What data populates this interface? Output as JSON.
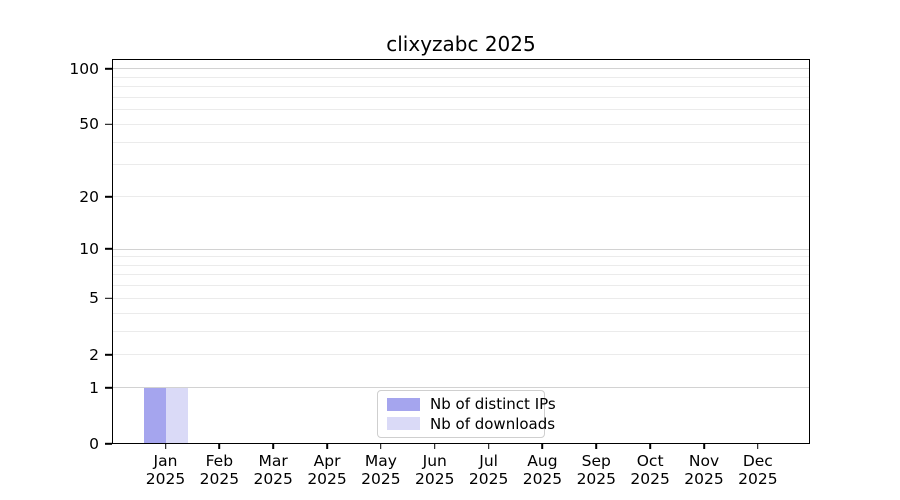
{
  "chart_data": {
    "type": "bar",
    "title": "clixyzabc 2025",
    "categories": [
      "Jan 2025",
      "Feb 2025",
      "Mar 2025",
      "Apr 2025",
      "May 2025",
      "Jun 2025",
      "Jul 2025",
      "Aug 2025",
      "Sep 2025",
      "Oct 2025",
      "Nov 2025",
      "Dec 2025"
    ],
    "series": [
      {
        "name": "Nb of distinct IPs",
        "color": "#a5a5ee",
        "values": [
          1,
          0,
          0,
          0,
          0,
          0,
          0,
          0,
          0,
          0,
          0,
          0
        ]
      },
      {
        "name": "Nb of downloads",
        "color": "#dadaf7",
        "values": [
          1,
          0,
          0,
          0,
          0,
          0,
          0,
          0,
          0,
          0,
          0,
          0
        ]
      }
    ],
    "y_scale": "log1p",
    "ylim": [
      0,
      113
    ],
    "y_ticks": [
      0,
      1,
      2,
      5,
      10,
      20,
      50,
      100
    ],
    "y_major_gridlines": [
      1,
      10,
      100
    ],
    "y_minor_gridlines": [
      2,
      3,
      4,
      5,
      6,
      7,
      8,
      9,
      20,
      30,
      40,
      50,
      60,
      70,
      80,
      90
    ],
    "legend": {
      "location": "lower center"
    },
    "colors": {
      "major_grid": "#d2d2d2",
      "minor_grid": "#ebebeb",
      "spine": "#000000",
      "background": "#ffffff"
    }
  }
}
